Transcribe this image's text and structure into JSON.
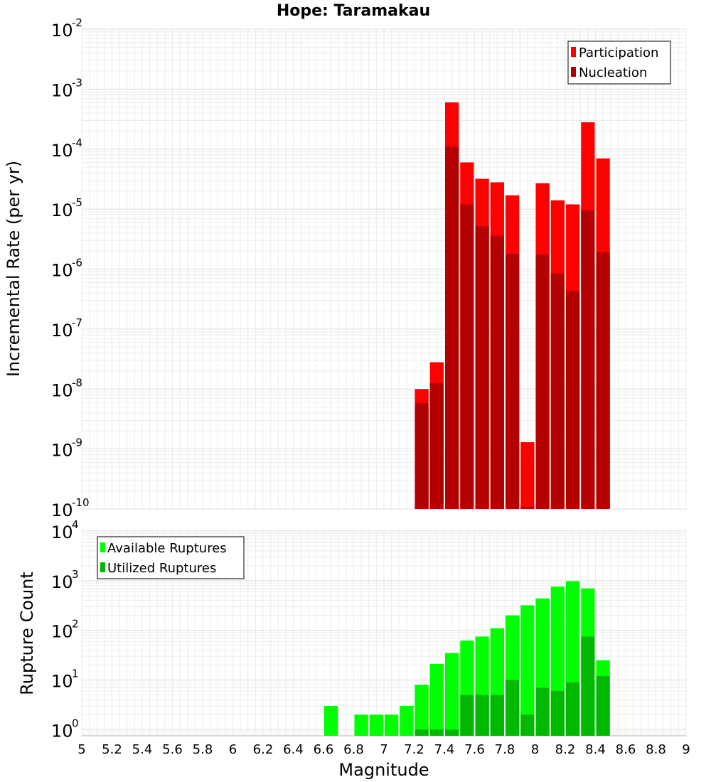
{
  "chart_data": [
    {
      "type": "bar",
      "title": "Hope: Taramakau",
      "xlabel": "Magnitude",
      "ylabel": "Incremental Rate (per yr)",
      "yscale": "log",
      "xlim": [
        5,
        9
      ],
      "ylim": [
        1e-10,
        0.01
      ],
      "ytick_bases": [
        "10",
        "10",
        "10",
        "10",
        "10",
        "10",
        "10",
        "10",
        "10"
      ],
      "ytick_exponents": [
        "-10",
        "-9",
        "-8",
        "-7",
        "-6",
        "-5",
        "-4",
        "-3",
        "-2"
      ],
      "grid": true,
      "legend_position": "top-right",
      "bar_width": 0.1,
      "series": [
        {
          "name": "Participation",
          "color": "#ff0000",
          "x": [
            7.25,
            7.35,
            7.45,
            7.55,
            7.65,
            7.75,
            7.85,
            7.95,
            8.05,
            8.15,
            8.25,
            8.35,
            8.45
          ],
          "values": [
            1e-08,
            2.8e-08,
            0.0006,
            6e-05,
            3.2e-05,
            2.8e-05,
            1.7e-05,
            1.3e-09,
            2.7e-05,
            1.4e-05,
            1.2e-05,
            0.00028,
            7e-05
          ]
        },
        {
          "name": "Nucleation",
          "color": "#b30000",
          "x": [
            7.25,
            7.35,
            7.45,
            7.55,
            7.65,
            7.75,
            7.85,
            7.95,
            8.05,
            8.15,
            8.25,
            8.35,
            8.45
          ],
          "values": [
            5.8e-09,
            1.25e-08,
            0.00011,
            1.2e-05,
            5.2e-06,
            3.6e-06,
            1.8e-06,
            1.1e-10,
            1.75e-06,
            8.5e-07,
            4.3e-07,
            9.5e-06,
            1.9e-06
          ]
        }
      ]
    },
    {
      "type": "bar",
      "xlabel": "Magnitude",
      "ylabel": "Rupture Count",
      "yscale": "log",
      "xlim": [
        5,
        9
      ],
      "ylim": [
        0.75,
        10000
      ],
      "xticks": [
        "5",
        "5.2",
        "5.4",
        "5.6",
        "5.8",
        "6",
        "6.2",
        "6.4",
        "6.6",
        "6.8",
        "7",
        "7.2",
        "7.4",
        "7.6",
        "7.8",
        "8",
        "8.2",
        "8.4",
        "8.6",
        "8.8",
        "9"
      ],
      "ytick_bases": [
        "10",
        "10",
        "10",
        "10",
        "10"
      ],
      "ytick_exponents": [
        "0",
        "1",
        "2",
        "3",
        "4"
      ],
      "grid": true,
      "legend_position": "top-left",
      "bar_width": 0.1,
      "series": [
        {
          "name": "Available Ruptures",
          "color": "#00ff00",
          "x": [
            6.65,
            6.85,
            6.95,
            7.05,
            7.15,
            7.25,
            7.35,
            7.45,
            7.55,
            7.65,
            7.75,
            7.85,
            7.95,
            8.05,
            8.15,
            8.25,
            8.35,
            8.45
          ],
          "values": [
            3,
            2,
            2,
            2,
            3,
            8,
            21,
            35,
            62,
            75,
            110,
            200,
            320,
            440,
            760,
            980,
            700,
            25
          ]
        },
        {
          "name": "Utilized Ruptures",
          "color": "#00b800",
          "x": [
            7.25,
            7.35,
            7.45,
            7.55,
            7.65,
            7.75,
            7.85,
            7.95,
            8.05,
            8.15,
            8.25,
            8.35,
            8.45
          ],
          "values": [
            1,
            1,
            1,
            5,
            5,
            5,
            10,
            2,
            7,
            6,
            9,
            75,
            12
          ]
        }
      ]
    }
  ]
}
